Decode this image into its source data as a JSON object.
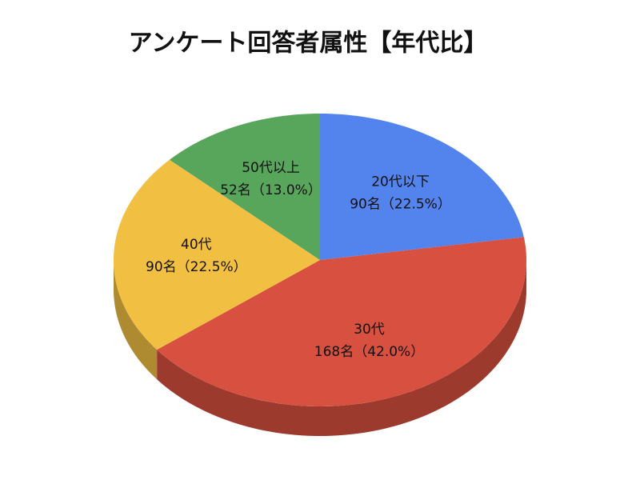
{
  "chart_data": {
    "type": "pie3d",
    "title": "アンケート回答者属性【年代比】",
    "categories": [
      "20代以下",
      "30代",
      "40代",
      "50代以上"
    ],
    "values": [
      90,
      168,
      90,
      52
    ],
    "value_labels": [
      "90名（22.5%）",
      "168名（42.0%）",
      "90名（22.5%）",
      "52名（13.0%）"
    ],
    "colors": [
      "#5383ec",
      "#d85040",
      "#f1bf42",
      "#58a55c"
    ]
  }
}
